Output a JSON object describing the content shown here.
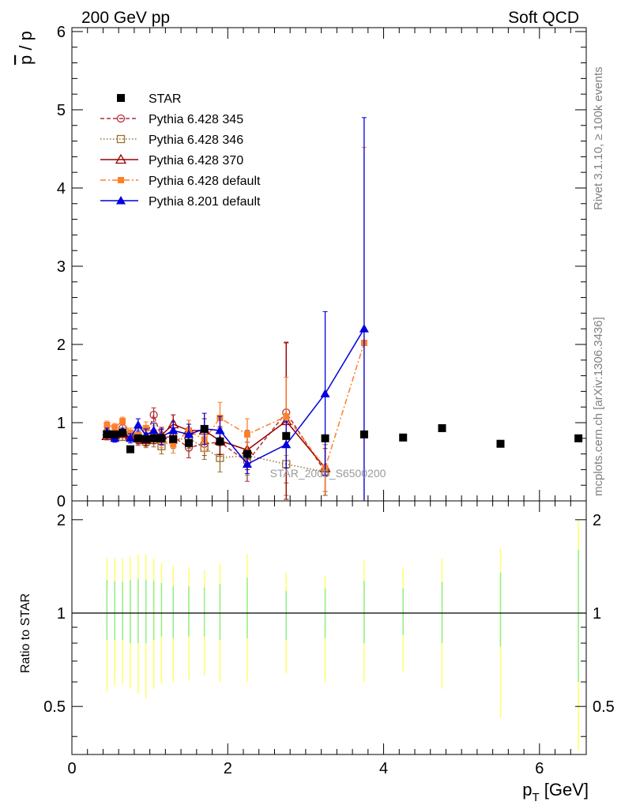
{
  "header": {
    "left_label": "200 GeV pp",
    "right_label": "Soft QCD",
    "side_rivet": "Rivet 3.1.10, ≥ 100k events",
    "side_mcplots": "mcplots.cern.ch [arXiv:1306.3436]",
    "watermark": "STAR_2006_S6500200"
  },
  "colors": {
    "star": "#000000",
    "p345": "#b0303a",
    "p346": "#9a7030",
    "p370": "#990000",
    "p6def": "#ff7f2a",
    "p8def": "#0000dd",
    "band_outer": "#ffff66",
    "band_inner": "#90ee90"
  },
  "chart_data": [
    {
      "type": "scatter",
      "title": "",
      "xlabel": "",
      "ylabel": "p̄ / p",
      "ylabel_main": "p",
      "ylabel_rest": " / p",
      "xlim": [
        0,
        6.6
      ],
      "ylim": [
        0,
        6.05
      ],
      "y_ticks": [
        "0",
        "1",
        "2",
        "3",
        "4",
        "5",
        "6"
      ],
      "legend_position": "top-left",
      "series": [
        {
          "name": "STAR",
          "style": "data",
          "x": [
            0.45,
            0.55,
            0.65,
            0.75,
            0.85,
            0.95,
            1.05,
            1.15,
            1.3,
            1.5,
            1.7,
            1.9,
            2.25,
            2.75,
            3.25,
            3.75,
            4.25,
            4.75,
            5.5,
            6.5
          ],
          "y": [
            0.85,
            0.85,
            0.87,
            0.66,
            0.8,
            0.79,
            0.8,
            0.8,
            0.79,
            0.74,
            0.92,
            0.76,
            0.6,
            0.83,
            0.8,
            0.85,
            0.81,
            0.93,
            0.73,
            0.8
          ]
        },
        {
          "name": "Pythia 6.428 345",
          "style": "p345",
          "x": [
            0.45,
            0.55,
            0.65,
            0.75,
            0.85,
            0.95,
            1.05,
            1.15,
            1.3,
            1.5,
            1.7,
            1.9,
            2.25,
            2.75,
            3.25
          ],
          "y": [
            0.88,
            0.82,
            0.93,
            0.84,
            0.78,
            0.79,
            1.1,
            0.81,
            0.82,
            0.68,
            0.73,
            0.75,
            0.5,
            1.13,
            0.37
          ],
          "err": [
            0.05,
            0.05,
            0.05,
            0.06,
            0.07,
            0.08,
            0.09,
            0.1,
            0.11,
            0.13,
            0.15,
            0.18,
            0.25,
            0.9,
            0.3
          ]
        },
        {
          "name": "Pythia 6.428 346",
          "style": "p346",
          "x": [
            0.45,
            0.55,
            0.65,
            0.75,
            0.85,
            0.95,
            1.05,
            1.15,
            1.3,
            1.5,
            1.7,
            1.9,
            2.25,
            2.75,
            3.25
          ],
          "y": [
            0.85,
            0.83,
            0.82,
            0.82,
            0.8,
            0.76,
            0.78,
            0.7,
            0.78,
            0.8,
            0.68,
            0.55,
            0.58,
            0.47,
            0.37
          ],
          "err": [
            0.05,
            0.05,
            0.05,
            0.06,
            0.07,
            0.08,
            0.09,
            0.1,
            0.11,
            0.13,
            0.15,
            0.18,
            0.25,
            0.4,
            0.3
          ]
        },
        {
          "name": "Pythia 6.428 370",
          "style": "p370",
          "x": [
            0.45,
            0.55,
            0.65,
            0.75,
            0.85,
            0.95,
            1.05,
            1.15,
            1.3,
            1.5,
            1.7,
            1.9,
            2.25,
            2.75,
            3.25
          ],
          "y": [
            0.83,
            0.85,
            0.86,
            0.84,
            0.8,
            0.78,
            0.82,
            0.84,
            0.98,
            0.9,
            0.9,
            0.77,
            0.65,
            1.02,
            0.42
          ],
          "err": [
            0.05,
            0.05,
            0.05,
            0.06,
            0.07,
            0.08,
            0.09,
            0.1,
            0.12,
            0.13,
            0.15,
            0.18,
            0.25,
            1.0,
            0.3
          ]
        },
        {
          "name": "Pythia 6.428 default",
          "style": "p6def",
          "x": [
            0.45,
            0.55,
            0.65,
            0.75,
            0.85,
            0.95,
            1.05,
            1.15,
            1.3,
            1.5,
            1.7,
            1.9,
            2.25,
            2.75,
            3.25,
            3.75
          ],
          "y": [
            0.97,
            0.94,
            1.02,
            0.87,
            0.84,
            0.93,
            0.87,
            0.78,
            0.72,
            0.9,
            0.78,
            1.06,
            0.85,
            1.08,
            0.42,
            2.02
          ],
          "err": [
            0.05,
            0.05,
            0.05,
            0.06,
            0.07,
            0.08,
            0.09,
            0.1,
            0.11,
            0.13,
            0.15,
            0.2,
            0.2,
            0.5,
            0.3,
            2.5
          ]
        },
        {
          "name": "Pythia 8.201 default",
          "style": "p8def",
          "x": [
            0.45,
            0.55,
            0.65,
            0.75,
            0.85,
            0.95,
            1.05,
            1.15,
            1.3,
            1.5,
            1.7,
            1.9,
            2.25,
            2.75,
            3.25,
            3.75
          ],
          "y": [
            0.88,
            0.8,
            0.88,
            0.8,
            0.97,
            0.84,
            0.9,
            0.82,
            0.9,
            0.85,
            0.92,
            0.9,
            0.47,
            0.72,
            1.37,
            2.2
          ],
          "err": [
            0.05,
            0.05,
            0.05,
            0.06,
            0.08,
            0.08,
            0.09,
            0.1,
            0.11,
            0.13,
            0.2,
            0.18,
            0.12,
            0.3,
            1.05,
            2.7
          ]
        }
      ]
    },
    {
      "type": "scatter",
      "title": "",
      "xlabel": "p_T [GeV]",
      "xlabel_main": "p",
      "xlabel_sub": "T",
      "xlabel_rest": " [GeV]",
      "ylabel": "Ratio to STAR",
      "xlim": [
        0,
        6.6
      ],
      "ylim": [
        0.35,
        2.3
      ],
      "log_y": true,
      "x_ticks": [
        "0",
        "2",
        "4",
        "6"
      ],
      "y_ticks": [
        "0.5",
        "1",
        "2"
      ],
      "reference_line": 1,
      "bands": {
        "x": [
          0.45,
          0.55,
          0.65,
          0.75,
          0.85,
          0.95,
          1.05,
          1.15,
          1.3,
          1.5,
          1.7,
          1.9,
          2.25,
          2.75,
          3.25,
          3.75,
          4.25,
          4.75,
          5.5,
          6.5
        ],
        "outer_low": [
          0.56,
          0.58,
          0.59,
          0.57,
          0.55,
          0.53,
          0.57,
          0.59,
          0.6,
          0.61,
          0.63,
          0.6,
          0.6,
          0.64,
          0.6,
          0.6,
          0.65,
          0.57,
          0.46,
          0.36
        ],
        "outer_high": [
          1.5,
          1.5,
          1.5,
          1.52,
          1.55,
          1.55,
          1.5,
          1.45,
          1.42,
          1.4,
          1.38,
          1.45,
          1.55,
          1.35,
          1.32,
          1.48,
          1.4,
          1.5,
          1.62,
          2.0
        ],
        "inner_low": [
          0.82,
          0.82,
          0.82,
          0.8,
          0.8,
          0.8,
          0.82,
          0.84,
          0.83,
          0.84,
          0.84,
          0.82,
          0.83,
          0.82,
          0.83,
          0.8,
          0.85,
          0.8,
          0.78,
          0.6
        ],
        "inner_high": [
          1.28,
          1.27,
          1.26,
          1.28,
          1.29,
          1.28,
          1.27,
          1.25,
          1.22,
          1.22,
          1.21,
          1.24,
          1.3,
          1.18,
          1.2,
          1.27,
          1.2,
          1.26,
          1.35,
          1.6
        ]
      }
    }
  ]
}
